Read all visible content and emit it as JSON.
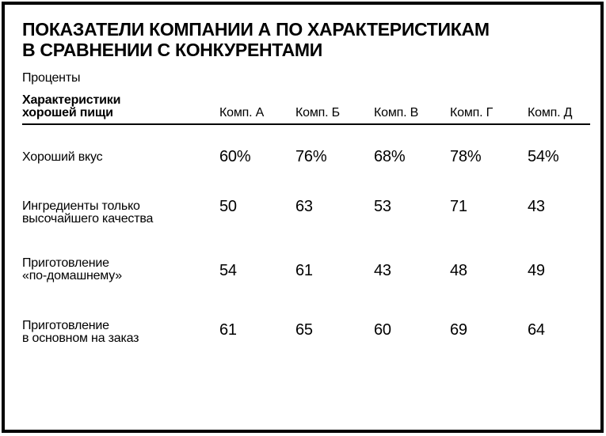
{
  "page": {
    "title_lines": [
      "ПОКАЗАТЕЛИ КОМПАНИИ А ПО ХАРАКТЕРИСТИКАМ",
      "В СРАВНЕНИИ С КОНКУРЕНТАМИ"
    ],
    "subtitle": "Проценты"
  },
  "table": {
    "header": {
      "label_lines": [
        "Характеристики",
        "хорошей пищи"
      ],
      "columns": [
        "Комп. А",
        "Комп. Б",
        "Комп. В",
        "Комп. Г",
        "Комп. Д"
      ]
    },
    "rows": [
      {
        "label_lines": [
          "Хороший вкус"
        ],
        "values": [
          "60%",
          "76%",
          "68%",
          "78%",
          "54%"
        ]
      },
      {
        "label_lines": [
          "Ингредиенты только",
          "высочайшего качества"
        ],
        "values": [
          "50",
          "63",
          "53",
          "71",
          "43"
        ]
      },
      {
        "label_lines": [
          "Приготовление",
          "«по-домашнему»"
        ],
        "values": [
          "54",
          "61",
          "43",
          "48",
          "49"
        ]
      },
      {
        "label_lines": [
          "Приготовление",
          "в основном на заказ"
        ],
        "values": [
          "61",
          "65",
          "60",
          "69",
          "64"
        ]
      }
    ]
  },
  "chart_data": {
    "type": "table",
    "title": "ПОКАЗАТЕЛИ КОМПАНИИ А ПО ХАРАКТЕРИСТИКАМ В СРАВНЕНИИ С КОНКУРЕНТАМИ",
    "units": "Проценты",
    "row_header": "Характеристики хорошей пищи",
    "categories": [
      "Комп. А",
      "Комп. Б",
      "Комп. В",
      "Комп. Г",
      "Комп. Д"
    ],
    "series": [
      {
        "name": "Хороший вкус",
        "values": [
          60,
          76,
          68,
          78,
          54
        ]
      },
      {
        "name": "Ингредиенты только высочайшего качества",
        "values": [
          50,
          63,
          53,
          71,
          43
        ]
      },
      {
        "name": "Приготовление «по-домашнему»",
        "values": [
          54,
          61,
          43,
          48,
          49
        ]
      },
      {
        "name": "Приготовление в основном на заказ",
        "values": [
          61,
          65,
          60,
          69,
          64
        ]
      }
    ]
  },
  "colors": {
    "text": "#000000",
    "background": "#ffffff",
    "border": "#000000"
  }
}
